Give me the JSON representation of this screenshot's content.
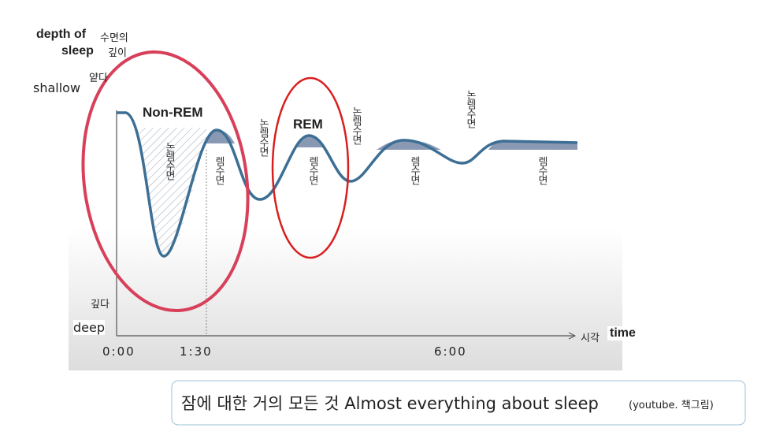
{
  "axis": {
    "y_title_en": [
      "depth of",
      "sleep"
    ],
    "y_title_ko": [
      "수면의",
      "깊이"
    ],
    "shallow_en": "shallow",
    "shallow_ko": "얕다",
    "deep_ko": "깊다",
    "deep_en": "deep",
    "x_ticks": [
      "0:00",
      "1:30",
      "6:00"
    ],
    "x_title_ko": "시각",
    "x_title_en": "time"
  },
  "labels": {
    "non_rem": "Non-REM",
    "rem": "REM"
  },
  "stage_labels": [
    "논렘수면",
    "렘수면",
    "논렘수면",
    "렘수면",
    "논렘수면",
    "렘수면",
    "논렘수면",
    "렘수면"
  ],
  "caption": {
    "main": "잠에 대한 거의 모든 것 Almost everything about sleep",
    "source": "(youtube. 책그림)"
  }
}
